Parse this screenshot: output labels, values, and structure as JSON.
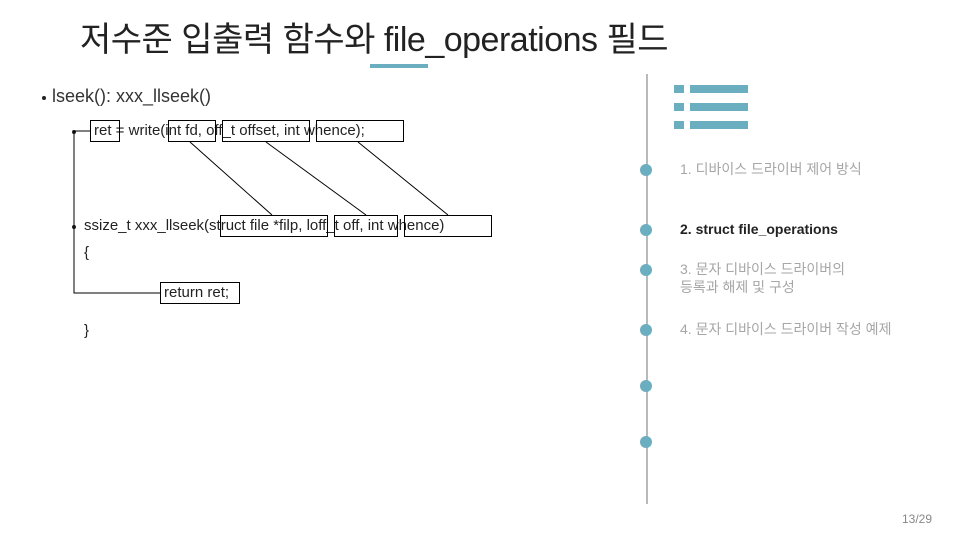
{
  "title": "저수준 입출력 함수와 file_operations 필드",
  "subtitle": "lseek(): xxx_llseek()",
  "code": {
    "line1_pre": "ret",
    "line1_rest": " = write(int fd, off_t offset, int whence);",
    "line2": "ssize_t xxx_llseek(struct file *filp, loff_t off, int whence)",
    "line3": "{",
    "line4": "return ret;",
    "line5": "}"
  },
  "nav": {
    "item1": "1. 디바이스 드라이버 제어 방식",
    "item2": "2. struct file_operations",
    "item3a": "3. 문자 디바이스 드라이버의",
    "item3b": "등록과 해제 및 구성",
    "item4": "4. 문자 디바이스 드라이버 작성 예제"
  },
  "page": "13/29",
  "colors": {
    "accent": "#6aaebf",
    "muted": "#a6a6a6",
    "text": "#222222",
    "line": "#b9b9b9"
  },
  "layout": {
    "vline_height": 430,
    "dot_tops": [
      164,
      224,
      264,
      324,
      380,
      436
    ]
  }
}
